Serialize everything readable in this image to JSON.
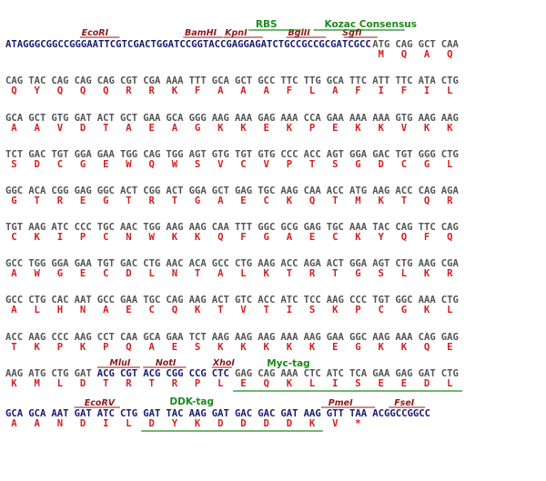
{
  "line1": {
    "five_prime_flank": "ATAGGGCGGCCGGGAATTCGTCGACTGGATCCGGTACCGAGGAGATCTGCCGCCGCGATCGCC",
    "codons": [
      "ATG",
      "CAG",
      "GCT",
      "CAA"
    ],
    "aa": [
      "M",
      "Q",
      "A",
      "Q"
    ]
  },
  "rows": [
    {
      "codons": [
        "CAG",
        "TAC",
        "CAG",
        "CAG",
        "CAG",
        "CGT",
        "CGA",
        "AAA",
        "TTT",
        "GCA",
        "GCT",
        "GCC",
        "TTC",
        "TTG",
        "GCA",
        "TTC",
        "ATT",
        "TTC",
        "ATA",
        "CTG"
      ],
      "aa": [
        "Q",
        "Y",
        "Q",
        "Q",
        "Q",
        "R",
        "R",
        "K",
        "F",
        "A",
        "A",
        "A",
        "F",
        "L",
        "A",
        "F",
        "I",
        "F",
        "I",
        "L"
      ]
    },
    {
      "codons": [
        "GCA",
        "GCT",
        "GTG",
        "GAT",
        "ACT",
        "GCT",
        "GAA",
        "GCA",
        "GGG",
        "AAG",
        "AAA",
        "GAG",
        "AAA",
        "CCA",
        "GAA",
        "AAA",
        "AAA",
        "GTG",
        "AAG",
        "AAG"
      ],
      "aa": [
        "A",
        "A",
        "V",
        "D",
        "T",
        "A",
        "E",
        "A",
        "G",
        "K",
        "K",
        "E",
        "K",
        "P",
        "E",
        "K",
        "K",
        "V",
        "K",
        "K"
      ]
    },
    {
      "codons": [
        "TCT",
        "GAC",
        "TGT",
        "GGA",
        "GAA",
        "TGG",
        "CAG",
        "TGG",
        "AGT",
        "GTG",
        "TGT",
        "GTG",
        "CCC",
        "ACC",
        "AGT",
        "GGA",
        "GAC",
        "TGT",
        "GGG",
        "CTG"
      ],
      "aa": [
        "S",
        "D",
        "C",
        "G",
        "E",
        "W",
        "Q",
        "W",
        "S",
        "V",
        "C",
        "V",
        "P",
        "T",
        "S",
        "G",
        "D",
        "C",
        "G",
        "L"
      ]
    },
    {
      "codons": [
        "GGC",
        "ACA",
        "CGG",
        "GAG",
        "GGC",
        "ACT",
        "CGG",
        "ACT",
        "GGA",
        "GCT",
        "GAG",
        "TGC",
        "AAG",
        "CAA",
        "ACC",
        "ATG",
        "AAG",
        "ACC",
        "CAG",
        "AGA"
      ],
      "aa": [
        "G",
        "T",
        "R",
        "E",
        "G",
        "T",
        "R",
        "T",
        "G",
        "A",
        "E",
        "C",
        "K",
        "Q",
        "T",
        "M",
        "K",
        "T",
        "Q",
        "R"
      ]
    },
    {
      "codons": [
        "TGT",
        "AAG",
        "ATC",
        "CCC",
        "TGC",
        "AAC",
        "TGG",
        "AAG",
        "AAG",
        "CAA",
        "TTT",
        "GGC",
        "GCG",
        "GAG",
        "TGC",
        "AAA",
        "TAC",
        "CAG",
        "TTC",
        "CAG"
      ],
      "aa": [
        "C",
        "K",
        "I",
        "P",
        "C",
        "N",
        "W",
        "K",
        "K",
        "Q",
        "F",
        "G",
        "A",
        "E",
        "C",
        "K",
        "Y",
        "Q",
        "F",
        "Q"
      ]
    },
    {
      "codons": [
        "GCC",
        "TGG",
        "GGA",
        "GAA",
        "TGT",
        "GAC",
        "CTG",
        "AAC",
        "ACA",
        "GCC",
        "CTG",
        "AAG",
        "ACC",
        "AGA",
        "ACT",
        "GGA",
        "AGT",
        "CTG",
        "AAG",
        "CGA"
      ],
      "aa": [
        "A",
        "W",
        "G",
        "E",
        "C",
        "D",
        "L",
        "N",
        "T",
        "A",
        "L",
        "K",
        "T",
        "R",
        "T",
        "G",
        "S",
        "L",
        "K",
        "R"
      ]
    },
    {
      "codons": [
        "GCC",
        "CTG",
        "CAC",
        "AAT",
        "GCC",
        "GAA",
        "TGC",
        "CAG",
        "AAG",
        "ACT",
        "GTC",
        "ACC",
        "ATC",
        "TCC",
        "AAG",
        "CCC",
        "TGT",
        "GGC",
        "AAA",
        "CTG"
      ],
      "aa": [
        "A",
        "L",
        "H",
        "N",
        "A",
        "E",
        "C",
        "Q",
        "K",
        "T",
        "V",
        "T",
        "I",
        "S",
        "K",
        "P",
        "C",
        "G",
        "K",
        "L"
      ]
    },
    {
      "codons": [
        "ACC",
        "AAG",
        "CCC",
        "AAG",
        "CCT",
        "CAA",
        "GCA",
        "GAA",
        "TCT",
        "AAG",
        "AAG",
        "AAG",
        "AAA",
        "AAG",
        "GAA",
        "GGC",
        "AAG",
        "AAA",
        "CAG",
        "GAG"
      ],
      "aa": [
        "T",
        "K",
        "P",
        "K",
        "P",
        "Q",
        "A",
        "E",
        "S",
        "K",
        "K",
        "K",
        "K",
        "K",
        "E",
        "G",
        "K",
        "K",
        "Q",
        "E"
      ]
    },
    {
      "codons": [
        "AAG",
        "ATG",
        "CTG",
        "GAT",
        "ACG",
        "CGT",
        "ACG",
        "CGG",
        "CCG",
        "CTC",
        "GAG",
        "CAG",
        "AAA",
        "CTC",
        "ATC",
        "TCA",
        "GAA",
        "GAG",
        "GAT",
        "CTG"
      ],
      "aa": [
        "K",
        "M",
        "L",
        "D",
        "T",
        "R",
        "T",
        "R",
        "P",
        "L",
        "E",
        "Q",
        "K",
        "L",
        "I",
        "S",
        "E",
        "E",
        "D",
        "L"
      ]
    },
    {
      "codons": [
        "GCA",
        "GCA",
        "AAT",
        "GAT",
        "ATC",
        "CTG",
        "GAT",
        "TAC",
        "AAG",
        "GAT",
        "GAC",
        "GAC",
        "GAT",
        "AAG",
        "GTT",
        "TAA"
      ],
      "aa": [
        "A",
        "A",
        "N",
        "D",
        "I",
        "L",
        "D",
        "Y",
        "K",
        "D",
        "D",
        "D",
        "D",
        "K",
        "V",
        "*"
      ],
      "tail": "ACGGCCGGCC"
    }
  ],
  "line1_sites": [
    {
      "label": "EcoRI"
    },
    {
      "label": "BamHI"
    },
    {
      "label": "KpnI"
    },
    {
      "label": "BglII"
    },
    {
      "label": "SgfI"
    }
  ],
  "line1_features": [
    {
      "label": "RBS"
    },
    {
      "label": "Kozac Consensus"
    }
  ],
  "row9_sites": [
    {
      "label": "MluI"
    },
    {
      "label": "NotI"
    },
    {
      "label": "XhoI"
    }
  ],
  "row9_features": [
    {
      "label": "Myc-tag"
    }
  ],
  "row10_sites": [
    {
      "label": "EcoRV"
    },
    {
      "label": "PmeI"
    },
    {
      "label": "FseI"
    }
  ],
  "row10_features": [
    {
      "label": "DDK-tag"
    }
  ]
}
